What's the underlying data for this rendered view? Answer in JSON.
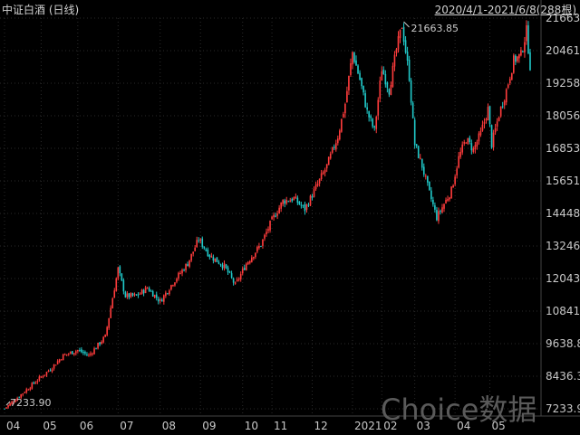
{
  "header": {
    "title": "中证白酒 (日线)",
    "range": "2020/4/1-2021/6/8(288根)"
  },
  "watermark": "Choice数据",
  "chart_data": {
    "type": "candlestick",
    "title": "中证白酒 (日线)",
    "ylim": [
      7233.9,
      21663.85
    ],
    "y_ticks": [
      "21663.8",
      "20461.3",
      "19258.8",
      "18056.3",
      "16853.8",
      "15651.3",
      "14448.8",
      "13246.3",
      "12043.8",
      "10841.3",
      "9638.89",
      "8436.39",
      "7233.90"
    ],
    "y_tick_values": [
      21663.8,
      20461.3,
      19258.8,
      18056.3,
      16853.8,
      15651.3,
      14448.8,
      13246.3,
      12043.8,
      10841.3,
      9638.89,
      8436.39,
      7233.9
    ],
    "x_ticks": [
      "04",
      "05",
      "06",
      "07",
      "08",
      "09",
      "10",
      "11",
      "12",
      "2021",
      "02",
      "03",
      "04",
      "05"
    ],
    "x_tick_days": [
      0,
      20,
      40,
      62,
      85,
      107,
      130,
      146,
      168,
      190,
      206,
      224,
      246,
      265
    ],
    "total_bars": 288,
    "max_label": "21663.85",
    "min_label": "7233.90",
    "up_color": "#ff3c3c",
    "down_color": "#20c8c8",
    "trend": [
      [
        0,
        7240
      ],
      [
        8,
        7700
      ],
      [
        18,
        8300
      ],
      [
        25,
        8700
      ],
      [
        32,
        9200
      ],
      [
        40,
        9400
      ],
      [
        46,
        9200
      ],
      [
        55,
        9900
      ],
      [
        62,
        12400
      ],
      [
        66,
        11400
      ],
      [
        72,
        11400
      ],
      [
        78,
        11700
      ],
      [
        85,
        11200
      ],
      [
        92,
        11900
      ],
      [
        100,
        12600
      ],
      [
        106,
        13500
      ],
      [
        112,
        12900
      ],
      [
        120,
        12500
      ],
      [
        126,
        11800
      ],
      [
        132,
        12600
      ],
      [
        140,
        13300
      ],
      [
        146,
        14200
      ],
      [
        152,
        14900
      ],
      [
        158,
        15000
      ],
      [
        164,
        14600
      ],
      [
        170,
        15400
      ],
      [
        176,
        16200
      ],
      [
        182,
        17300
      ],
      [
        186,
        18500
      ],
      [
        190,
        20400
      ],
      [
        194,
        19400
      ],
      [
        198,
        18200
      ],
      [
        202,
        17500
      ],
      [
        206,
        19800
      ],
      [
        210,
        19000
      ],
      [
        214,
        20500
      ],
      [
        217,
        21400
      ],
      [
        221,
        19500
      ],
      [
        224,
        17000
      ],
      [
        228,
        16200
      ],
      [
        232,
        15200
      ],
      [
        236,
        14300
      ],
      [
        240,
        14800
      ],
      [
        244,
        15300
      ],
      [
        248,
        16500
      ],
      [
        252,
        17200
      ],
      [
        256,
        16800
      ],
      [
        260,
        17400
      ],
      [
        264,
        18300
      ],
      [
        266,
        17000
      ],
      [
        270,
        18100
      ],
      [
        274,
        19000
      ],
      [
        278,
        20100
      ],
      [
        282,
        20300
      ],
      [
        285,
        21200
      ],
      [
        287,
        19900
      ]
    ]
  }
}
